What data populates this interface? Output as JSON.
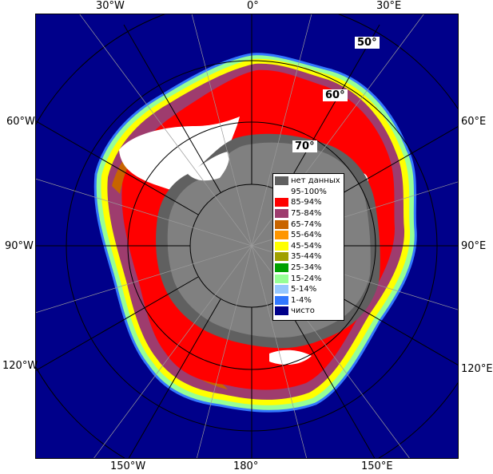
{
  "map": {
    "lon_labels": {
      "w30": "30°W",
      "zero": "0°",
      "e30": "30°E",
      "w60": "60°W",
      "e60": "60°E",
      "w90": "90°W",
      "e90": "90°E",
      "w120": "120°W",
      "e120": "120°E",
      "w150": "150°W",
      "lon180": "180°",
      "e150": "150°E"
    },
    "lat_labels": {
      "lat50": "50°",
      "lat60": "60°",
      "lat70": "70°"
    },
    "colors": {
      "open_water": "#00008a",
      "land": "#808080",
      "ice_shelf": "#ffffff",
      "no_data": "#606060",
      "grid": "#9a9a9a"
    }
  },
  "legend": {
    "items": [
      {
        "label": "нет данных",
        "color": "#606060"
      },
      {
        "label": "95-100%",
        "color": "#ffffff"
      },
      {
        "label": "85-94%",
        "color": "#ff0000"
      },
      {
        "label": "75-84%",
        "color": "#9e3c6e"
      },
      {
        "label": "65-74%",
        "color": "#c86400"
      },
      {
        "label": "55-64%",
        "color": "#ff9600"
      },
      {
        "label": "45-54%",
        "color": "#ffff00"
      },
      {
        "label": "35-44%",
        "color": "#a0a000"
      },
      {
        "label": "25-34%",
        "color": "#00a000"
      },
      {
        "label": "15-24%",
        "color": "#96ff96"
      },
      {
        "label": "5-14%",
        "color": "#96c8ff"
      },
      {
        "label": "1-4%",
        "color": "#3278ff"
      },
      {
        "label": "чисто",
        "color": "#00008a"
      }
    ]
  }
}
